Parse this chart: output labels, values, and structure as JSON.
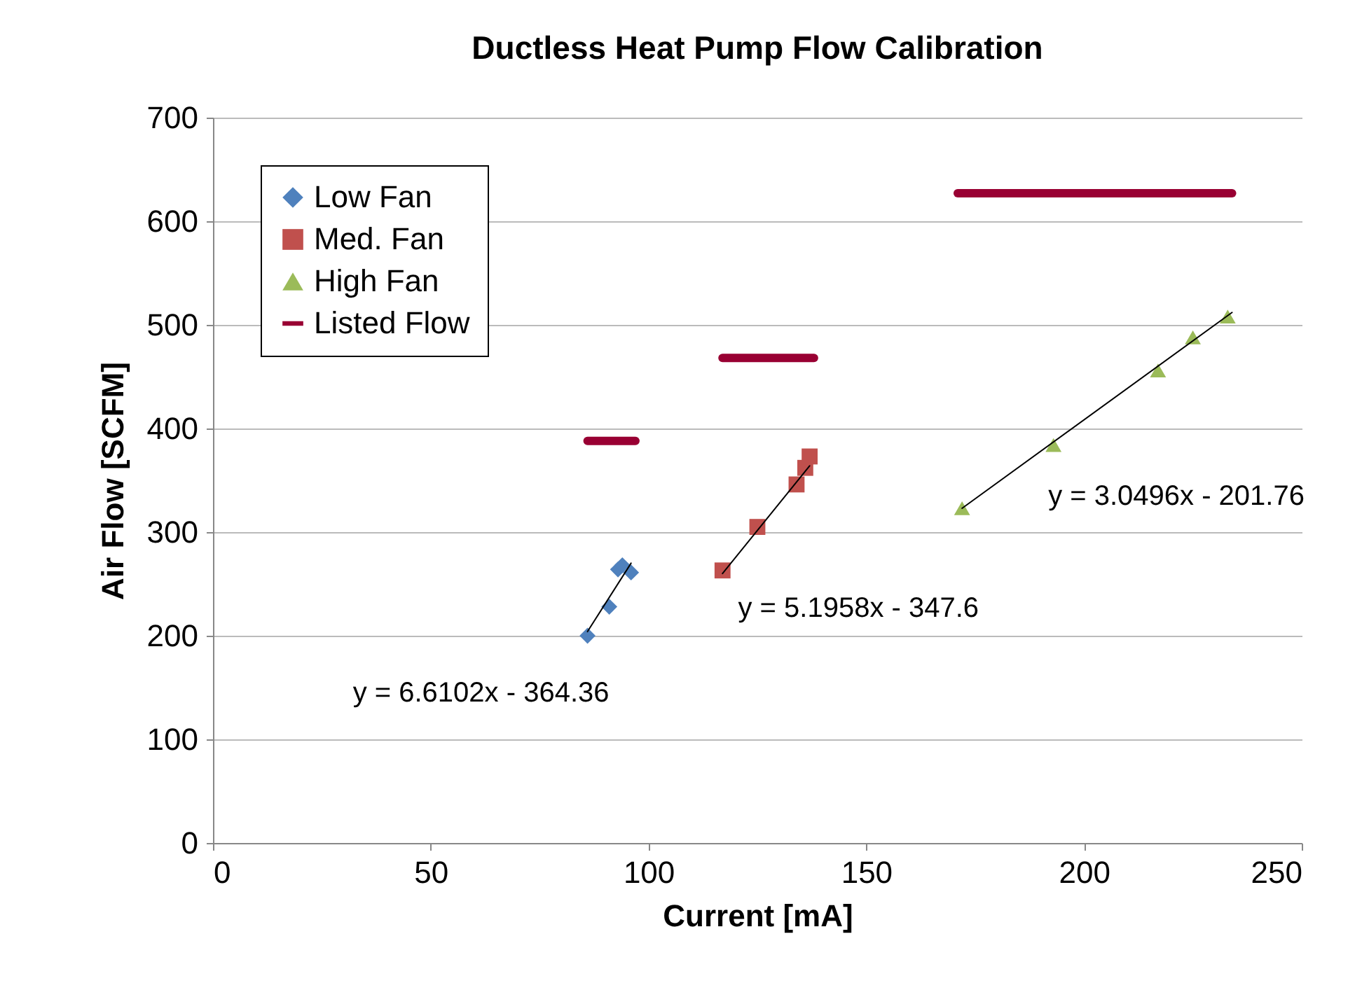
{
  "chart_data": {
    "type": "scatter",
    "title": "Ductless Heat Pump Flow Calibration",
    "xlabel": "Current [mA]",
    "ylabel": "Air Flow [SCFM]",
    "xlim": [
      0,
      250
    ],
    "xticks": [
      0,
      50,
      100,
      150,
      200,
      250
    ],
    "ylim": [
      0,
      700
    ],
    "yticks": [
      0,
      100,
      200,
      300,
      400,
      500,
      600,
      700
    ],
    "grid": "y",
    "legend": "top left",
    "series": [
      {
        "name": "Low Fan",
        "marker": "diamond",
        "color": "#4f81bd",
        "x": [
          86,
          91,
          93,
          94,
          96
        ],
        "values": [
          200,
          228,
          264,
          268,
          261
        ]
      },
      {
        "name": "Med. Fan",
        "marker": "square",
        "color": "#c0504d",
        "x": [
          117,
          125,
          134,
          136,
          137
        ],
        "values": [
          263,
          305,
          346,
          362,
          373
        ]
      },
      {
        "name": "High Fan",
        "marker": "triangle",
        "color": "#9bbb59",
        "x": [
          172,
          193,
          217,
          225,
          233
        ],
        "values": [
          323,
          384,
          456,
          488,
          508
        ]
      },
      {
        "name": "Listed Flow",
        "type": "line",
        "color": "#990033",
        "x": [
          86,
          97,
          107,
          117,
          138,
          150,
          171,
          234
        ],
        "values": [
          388,
          388,
          null,
          468,
          468,
          null,
          627,
          627
        ]
      },
      {
        "type": "line",
        "color": "#000000",
        "x": [
          86,
          96
        ],
        "values": [
          204,
          270
        ]
      },
      {
        "type": "line",
        "color": "#000000",
        "x": [
          117,
          137
        ],
        "values": [
          260,
          364
        ]
      },
      {
        "type": "line",
        "color": "#000000",
        "x": [
          172,
          234
        ],
        "values": [
          323,
          512
        ]
      }
    ],
    "annotations": [
      {
        "text": "y = 6.6102x - 364.36",
        "x": 86,
        "y": 204
      },
      {
        "text": "y = 5.1958x - 347.6",
        "x": 117,
        "y": 260
      },
      {
        "text": "y = 3.0496x - 201.76",
        "x": 190,
        "y": 378
      }
    ]
  }
}
